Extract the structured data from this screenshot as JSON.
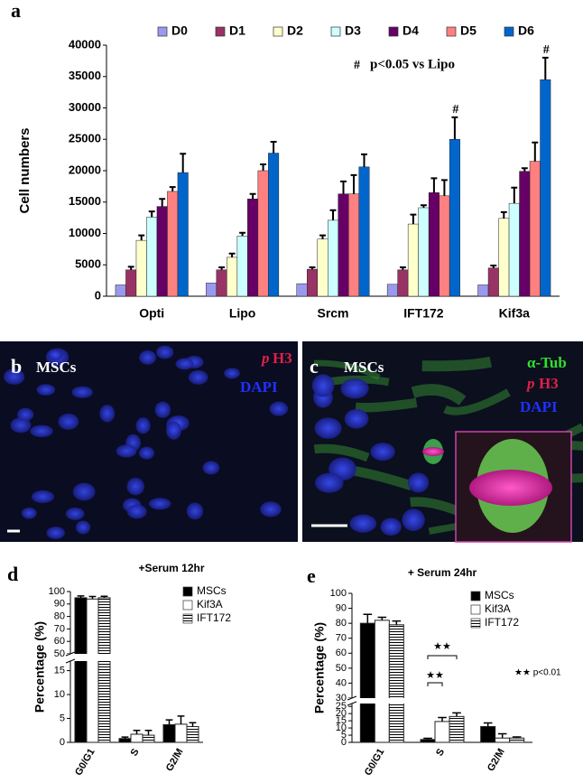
{
  "chart_data": [
    {
      "type": "bar",
      "panel": "a",
      "ylabel": "Cell numbers",
      "categories": [
        "Opti",
        "Lipo",
        "Srcm",
        "IFT172",
        "Kif3a"
      ],
      "series": [
        {
          "name": "D0",
          "color": "#9999ee",
          "values": [
            1800,
            2100,
            2000,
            1900,
            1800
          ]
        },
        {
          "name": "D1",
          "color": "#993366",
          "values": [
            4200,
            4200,
            4300,
            4200,
            4500
          ],
          "errors": [
            500,
            400,
            300,
            400,
            400
          ]
        },
        {
          "name": "D2",
          "color": "#ffffcc",
          "values": [
            8900,
            6200,
            9100,
            11500,
            12400
          ],
          "errors": [
            800,
            600,
            600,
            1500,
            1000
          ]
        },
        {
          "name": "D3",
          "color": "#ccffff",
          "values": [
            12600,
            9600,
            12100,
            14100,
            14800
          ],
          "errors": [
            900,
            500,
            1600,
            400,
            2500
          ]
        },
        {
          "name": "D4",
          "color": "#660066",
          "values": [
            14300,
            15500,
            16300,
            16500,
            19900
          ],
          "errors": [
            1200,
            800,
            2000,
            2300,
            500
          ]
        },
        {
          "name": "D5",
          "color": "#ff8080",
          "values": [
            16700,
            20000,
            16300,
            16000,
            21500
          ],
          "errors": [
            700,
            1000,
            3000,
            2500,
            3000
          ]
        },
        {
          "name": "D6",
          "color": "#0066cc",
          "values": [
            19700,
            22800,
            20600,
            25000,
            34500
          ],
          "errors": [
            3000,
            1800,
            2000,
            3500,
            3500
          ]
        }
      ],
      "ylim": [
        0,
        40000
      ],
      "yticks": [
        0,
        5000,
        10000,
        15000,
        20000,
        25000,
        30000,
        35000,
        40000
      ],
      "legend": "top",
      "note_symbol": "#",
      "note": "p<0.05 vs Lipo",
      "marker_labels": [
        "#",
        "#"
      ]
    },
    {
      "type": "bar",
      "panel": "d",
      "title": "+Serum 12hr",
      "ylabel": "Percentage (%)",
      "categories": [
        "G0/G1",
        "S",
        "G2/M"
      ],
      "series": [
        {
          "name": "MSCs",
          "color": "#000000",
          "values": [
            95,
            0.8,
            3.7
          ],
          "errors": [
            1.5,
            0.3,
            1.0
          ]
        },
        {
          "name": "Kif3A",
          "color": "#ffffff",
          "values": [
            94,
            1.7,
            3.8
          ],
          "errors": [
            2,
            0.8,
            1.7
          ]
        },
        {
          "name": "IFT172",
          "color": "#ffffff",
          "hatch": true,
          "values": [
            95,
            1.5,
            3.3
          ],
          "errors": [
            1.2,
            1.0,
            0.8
          ]
        }
      ],
      "ylim": [
        0,
        100
      ],
      "ybreak": [
        17,
        50
      ],
      "yticks": [
        0,
        5,
        10,
        15,
        50,
        60,
        70,
        80,
        90,
        100
      ],
      "legend": "upper right"
    },
    {
      "type": "bar",
      "panel": "e",
      "title": "+ Serum  24hr",
      "ylabel": "Percentage (%)",
      "categories": [
        "G0/G1",
        "S",
        "G2/M"
      ],
      "series": [
        {
          "name": "MSCs",
          "color": "#000000",
          "values": [
            80,
            2,
            11
          ],
          "errors": [
            6,
            0.8,
            2.5
          ]
        },
        {
          "name": "Kif3A",
          "color": "#ffffff",
          "values": [
            82,
            14.5,
            3
          ],
          "errors": [
            2,
            2.8,
            3
          ]
        },
        {
          "name": "IFT172",
          "color": "#ffffff",
          "hatch": true,
          "values": [
            79,
            18,
            3
          ],
          "errors": [
            2.5,
            2.5,
            0.8
          ]
        }
      ],
      "ylim": [
        0,
        100
      ],
      "ybreak": [
        27,
        30
      ],
      "yticks": [
        0,
        5,
        10,
        15,
        20,
        25,
        30,
        40,
        50,
        60,
        70,
        80,
        90,
        100
      ],
      "legend": "upper right",
      "sig_labels": [
        "★★",
        "★★"
      ],
      "note": "★★ p<0.01"
    }
  ],
  "images": [
    {
      "panel": "b",
      "cells": "MSCs",
      "stain_prefix": "p",
      "stain": "H3",
      "counterstain": "DAPI"
    },
    {
      "panel": "c",
      "cells": "MSCs",
      "marker": "α-Tub",
      "stain_prefix": "p",
      "stain": "H3",
      "counterstain": "DAPI"
    }
  ]
}
